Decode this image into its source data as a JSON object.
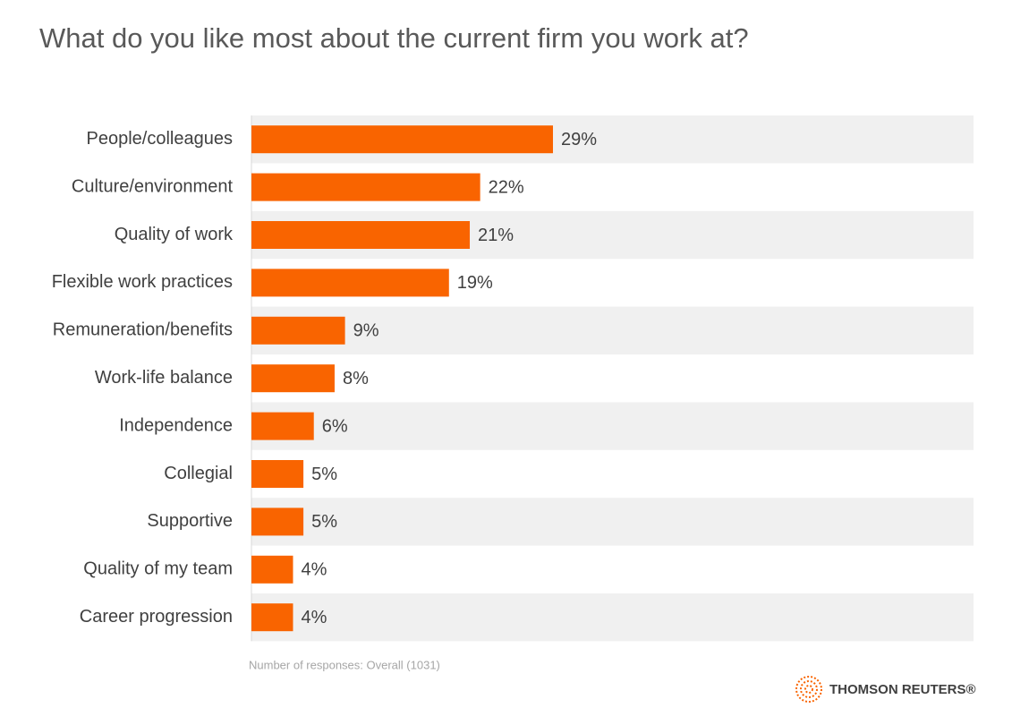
{
  "chart_data": {
    "type": "bar",
    "orientation": "horizontal",
    "title": "What do you like most about the current firm you work at?",
    "categories": [
      "People/colleagues",
      "Culture/environment",
      "Quality of work",
      "Flexible work practices",
      "Remuneration/benefits",
      "Work-life balance",
      "Independence",
      "Collegial",
      "Supportive",
      "Quality of my team",
      "Career progression"
    ],
    "values": [
      29,
      22,
      21,
      19,
      9,
      8,
      6,
      5,
      5,
      4,
      4
    ],
    "value_labels": [
      "29%",
      "22%",
      "21%",
      "19%",
      "9%",
      "8%",
      "6%",
      "5%",
      "5%",
      "4%",
      "4%"
    ],
    "color": "#f96400",
    "footnote": "Number of responses: Overall (1031)",
    "logo": "THOMSON REUTERS®"
  }
}
